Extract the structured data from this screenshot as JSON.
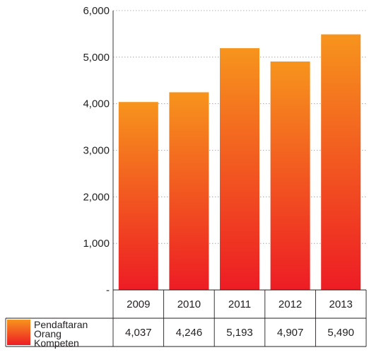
{
  "chart_data": {
    "type": "bar",
    "categories": [
      "2009",
      "2010",
      "2011",
      "2012",
      "2013"
    ],
    "series": [
      {
        "name": "Pendaftaran Orang Kompeten",
        "name_lines": [
          "Pendaftaran",
          "Orang",
          "Kompeten"
        ],
        "values": [
          4037,
          4246,
          5193,
          4907,
          5490
        ],
        "value_labels": [
          "4,037",
          "4,246",
          "5,193",
          "4,907",
          "5,490"
        ]
      }
    ],
    "y_ticks": [
      0,
      1000,
      2000,
      3000,
      4000,
      5000,
      6000
    ],
    "y_tick_labels": [
      "-",
      "1,000",
      "2,000",
      "3,000",
      "4,000",
      "5,000",
      "6,000"
    ],
    "ylim": [
      0,
      6000
    ],
    "grid": "horizontal dotted",
    "legend_position": "bottom-left (data table)",
    "colors": {
      "bar_top": "#f7941d",
      "bar_bottom": "#ed1c24",
      "grid": "#9a9a9a",
      "axis": "#231f20"
    }
  }
}
